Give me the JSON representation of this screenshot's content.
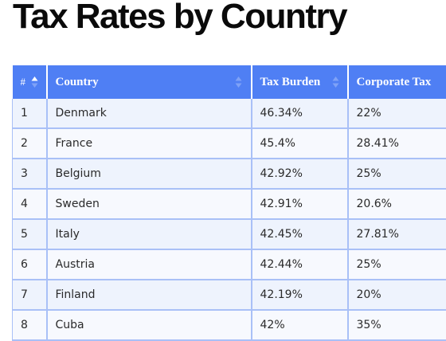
{
  "title": "Tax Rates by Country",
  "table": {
    "headers": {
      "num": "#",
      "country": "Country",
      "tax_burden": "Tax Burden",
      "corporate_tax": "Corporate Tax"
    },
    "sort": {
      "column": "num",
      "direction": "ascending"
    },
    "rows": [
      {
        "num": "1",
        "country": "Denmark",
        "tax_burden": "46.34%",
        "corporate_tax": "22%"
      },
      {
        "num": "2",
        "country": "France",
        "tax_burden": "45.4%",
        "corporate_tax": "28.41%"
      },
      {
        "num": "3",
        "country": "Belgium",
        "tax_burden": "42.92%",
        "corporate_tax": "25%"
      },
      {
        "num": "4",
        "country": "Sweden",
        "tax_burden": "42.91%",
        "corporate_tax": "20.6%"
      },
      {
        "num": "5",
        "country": "Italy",
        "tax_burden": "42.45%",
        "corporate_tax": "27.81%"
      },
      {
        "num": "6",
        "country": "Austria",
        "tax_burden": "42.44%",
        "corporate_tax": "25%"
      },
      {
        "num": "7",
        "country": "Finland",
        "tax_burden": "42.19%",
        "corporate_tax": "20%"
      },
      {
        "num": "8",
        "country": "Cuba",
        "tax_burden": "42%",
        "corporate_tax": "35%"
      }
    ]
  },
  "colors": {
    "header_bg": "#4f7ff4",
    "border": "#a9c0f7",
    "row_odd": "#eef3fd",
    "row_even": "#f7f9fe"
  }
}
